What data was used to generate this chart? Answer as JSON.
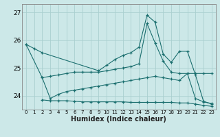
{
  "xlabel": "Humidex (Indice chaleur)",
  "bg_color": "#cce8e8",
  "grid_color": "#aacfcf",
  "line_color": "#1a6e6e",
  "xlim": [
    -0.5,
    23.5
  ],
  "ylim": [
    23.5,
    27.3
  ],
  "yticks": [
    24,
    25,
    26,
    27
  ],
  "xticks": [
    0,
    1,
    2,
    3,
    4,
    5,
    6,
    7,
    8,
    9,
    10,
    11,
    12,
    13,
    14,
    15,
    16,
    17,
    18,
    19,
    20,
    21,
    22,
    23
  ],
  "line1_x": [
    0,
    1,
    2,
    9,
    10,
    11,
    12,
    13,
    14,
    15,
    16,
    17,
    18,
    19,
    20,
    21,
    22,
    23
  ],
  "line1_y": [
    25.85,
    25.7,
    25.55,
    24.9,
    25.1,
    25.3,
    25.45,
    25.55,
    25.75,
    26.9,
    26.65,
    25.5,
    25.2,
    25.6,
    25.6,
    24.75,
    23.8,
    23.7
  ],
  "line2_x": [
    0,
    2,
    3,
    4,
    5,
    6,
    7,
    8,
    9,
    10,
    11,
    12,
    13,
    14,
    15,
    16,
    17,
    18,
    19,
    20,
    21,
    22,
    23
  ],
  "line2_y": [
    25.85,
    24.65,
    24.7,
    24.75,
    24.8,
    24.85,
    24.85,
    24.85,
    24.85,
    24.9,
    24.95,
    25.0,
    25.05,
    25.15,
    26.6,
    25.9,
    25.25,
    24.85,
    24.8,
    24.8,
    24.8,
    24.8,
    24.8
  ],
  "line3_x": [
    2,
    3,
    4,
    5,
    6,
    7,
    8,
    9,
    10,
    11,
    12,
    13,
    14,
    15,
    16,
    17,
    18,
    19,
    20,
    21,
    22,
    23
  ],
  "line3_y": [
    24.65,
    23.9,
    24.05,
    24.15,
    24.2,
    24.25,
    24.3,
    24.35,
    24.4,
    24.45,
    24.5,
    24.55,
    24.6,
    24.65,
    24.7,
    24.65,
    24.6,
    24.55,
    24.8,
    23.9,
    23.78,
    23.72
  ],
  "line4_x": [
    2,
    3,
    4,
    5,
    6,
    7,
    8,
    9,
    10,
    11,
    12,
    13,
    14,
    15,
    16,
    17,
    18,
    19,
    20,
    21,
    22,
    23
  ],
  "line4_y": [
    23.85,
    23.82,
    23.82,
    23.82,
    23.8,
    23.78,
    23.78,
    23.78,
    23.78,
    23.78,
    23.78,
    23.76,
    23.76,
    23.76,
    23.76,
    23.76,
    23.76,
    23.74,
    23.74,
    23.7,
    23.65,
    23.62
  ]
}
